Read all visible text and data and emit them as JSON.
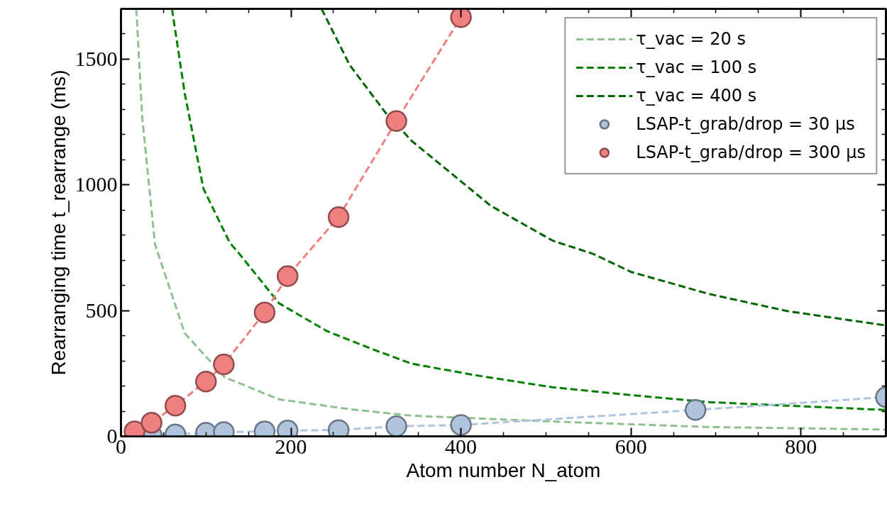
{
  "chart_data": {
    "type": "line",
    "xlabel": "Atom number N_atom",
    "ylabel": "Rearranging time t_rearrange (ms)",
    "xlim": [
      0,
      900
    ],
    "ylim": [
      0,
      1700
    ],
    "xticks": [
      0,
      {
        "value": 50,
        "label": null
      },
      200,
      {
        "value": 100,
        "label": null
      },
      {
        "value": 150,
        "label": null
      },
      {
        "value": 250,
        "label": null
      },
      {
        "value": 300,
        "label": null
      },
      {
        "value": 350,
        "label": null
      },
      400,
      {
        "value": 450,
        "label": null
      },
      {
        "value": 500,
        "label": null
      },
      {
        "value": 550,
        "label": null
      },
      600,
      {
        "value": 650,
        "label": null
      },
      {
        "value": 700,
        "label": null
      },
      {
        "value": 750,
        "label": null
      },
      800,
      {
        "value": 850,
        "label": null
      }
    ],
    "yticks": [
      0,
      {
        "value": 100,
        "label": null
      },
      {
        "value": 200,
        "label": null
      },
      {
        "value": 300,
        "label": null
      },
      {
        "value": 400,
        "label": null
      },
      500,
      {
        "value": 600,
        "label": null
      },
      {
        "value": 700,
        "label": null
      },
      {
        "value": 800,
        "label": null
      },
      {
        "value": 900,
        "label": null
      },
      1000,
      {
        "value": 1100,
        "label": null
      },
      {
        "value": 1200,
        "label": null
      },
      {
        "value": 1300,
        "label": null
      },
      {
        "value": 1400,
        "label": null
      },
      1500,
      {
        "value": 1600,
        "label": null
      }
    ],
    "grid": false,
    "legend": "top right",
    "line_style": "dashed",
    "series": [
      {
        "name": "τ_vac = 20 s",
        "color": "#90c090",
        "marker": "none",
        "x": [
          18,
          25,
          40,
          75,
          122,
          186,
          269,
          342,
          508,
          692,
          900
        ],
        "values": [
          1700,
          1268,
          764,
          410,
          235,
          147,
          108,
          82,
          59,
          37,
          27
        ]
      },
      {
        "name": "τ_vac = 100 s",
        "color": "#008000",
        "marker": "none",
        "x": [
          60,
          75,
          97,
          128,
          139,
          186,
          242,
          297,
          342,
          417,
          508,
          600,
          692,
          784,
          900
        ],
        "values": [
          1700,
          1364,
          985,
          770,
          727,
          529,
          419,
          345,
          289,
          243,
          195,
          164,
          136,
          122,
          105
        ]
      },
      {
        "name": "τ_vac = 400 s",
        "color": "#006400",
        "marker": "none",
        "x": [
          236,
          269,
          311,
          342,
          435,
          508,
          556,
          600,
          692,
          784,
          900
        ],
        "values": [
          1700,
          1477,
          1288,
          1175,
          917,
          778,
          725,
          654,
          566,
          498,
          441
        ]
      },
      {
        "name": "LSAP-t_grab/drop = 30 μs",
        "color": "#b0c4de",
        "marker": "circle",
        "x": [
          36,
          64,
          100,
          121,
          169,
          196,
          256,
          324,
          400,
          676,
          900
        ],
        "values": [
          5,
          8,
          14,
          17,
          20,
          23,
          25,
          40,
          45,
          105,
          156
        ]
      },
      {
        "name": "LSAP-t_grab/drop = 300 μs",
        "color": "#f08080",
        "marker": "circle",
        "x": [
          16,
          36,
          64,
          100,
          121,
          169,
          196,
          256,
          324,
          400
        ],
        "values": [
          20,
          54,
          122,
          218,
          286,
          493,
          637,
          872,
          1254,
          1667
        ]
      }
    ]
  }
}
